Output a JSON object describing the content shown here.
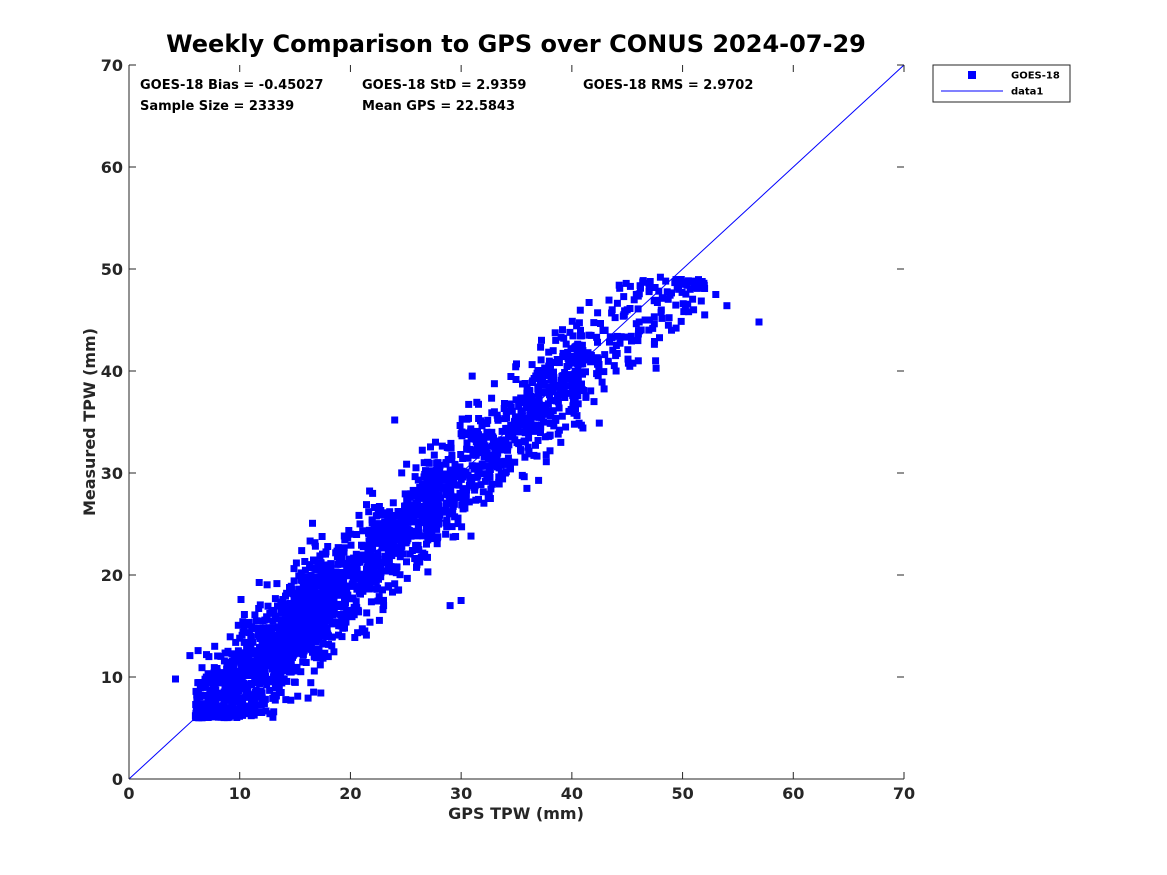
{
  "chart_data": {
    "type": "scatter",
    "title": "Weekly Comparison to GPS over CONUS 2024-07-29",
    "xlabel": "GPS TPW (mm)",
    "ylabel": "Measured TPW (mm)",
    "xlim": [
      0,
      70
    ],
    "ylim": [
      0,
      70
    ],
    "xticks": [
      "0",
      "10",
      "20",
      "30",
      "40",
      "50",
      "60",
      "70"
    ],
    "yticks": [
      "0",
      "10",
      "20",
      "30",
      "40",
      "50",
      "60",
      "70"
    ],
    "grid": false,
    "legend_position": "outside top-right",
    "stats": {
      "bias": "GOES-18 Bias = -0.45027",
      "std": "GOES-18 StD = 2.9359",
      "rms": "GOES-18 RMS = 2.9702",
      "sample_size": "Sample Size = 23339",
      "mean_gps": "Mean GPS = 22.5843"
    },
    "series": [
      {
        "name": "GOES-18",
        "kind": "scatter",
        "marker": "square",
        "color": "#0000ff",
        "bias": -0.45027,
        "std": 2.9359,
        "n": 23339,
        "mean_x": 22.5843,
        "x_range": [
          4,
          57
        ],
        "y_range": [
          6,
          49
        ],
        "points_sample": [
          [
            4.2,
            9.8
          ],
          [
            5.5,
            12.1
          ],
          [
            6.0,
            6.2
          ],
          [
            7.0,
            12.2
          ],
          [
            8.0,
            7.0
          ],
          [
            9.0,
            6.2
          ],
          [
            10.0,
            10.0
          ],
          [
            11.0,
            14.0
          ],
          [
            12.0,
            11.5
          ],
          [
            13.0,
            15.5
          ],
          [
            14.0,
            13.0
          ],
          [
            15.0,
            17.0
          ],
          [
            16.0,
            15.5
          ],
          [
            17.0,
            19.0
          ],
          [
            18.0,
            12.0
          ],
          [
            19.0,
            20.0
          ],
          [
            20.0,
            24.0
          ],
          [
            21.0,
            19.0
          ],
          [
            22.0,
            28.0
          ],
          [
            23.0,
            17.0
          ],
          [
            24.0,
            35.2
          ],
          [
            25.0,
            26.0
          ],
          [
            26.0,
            21.0
          ],
          [
            27.0,
            31.0
          ],
          [
            28.0,
            29.0
          ],
          [
            29.0,
            17.0
          ],
          [
            30.0,
            17.5
          ],
          [
            31.0,
            39.5
          ],
          [
            32.0,
            33.0
          ],
          [
            33.0,
            36.0
          ],
          [
            34.0,
            30.0
          ],
          [
            35.0,
            40.7
          ],
          [
            36.0,
            34.0
          ],
          [
            37.0,
            37.0
          ],
          [
            38.0,
            40.0
          ],
          [
            39.0,
            33.0
          ],
          [
            40.0,
            38.0
          ],
          [
            41.0,
            42.0
          ],
          [
            42.0,
            37.0
          ],
          [
            43.0,
            44.0
          ],
          [
            44.0,
            40.0
          ],
          [
            45.0,
            46.0
          ],
          [
            46.0,
            41.0
          ],
          [
            47.0,
            45.0
          ],
          [
            48.0,
            49.2
          ],
          [
            49.0,
            44.0
          ],
          [
            50.0,
            48.5
          ],
          [
            51.0,
            46.0
          ],
          [
            52.0,
            45.5
          ],
          [
            53.0,
            47.5
          ],
          [
            54.0,
            46.4
          ],
          [
            56.9,
            44.8
          ]
        ]
      },
      {
        "name": "data1",
        "kind": "line",
        "color": "#0000ff",
        "x": [
          0,
          70
        ],
        "y": [
          0,
          70
        ]
      }
    ]
  }
}
